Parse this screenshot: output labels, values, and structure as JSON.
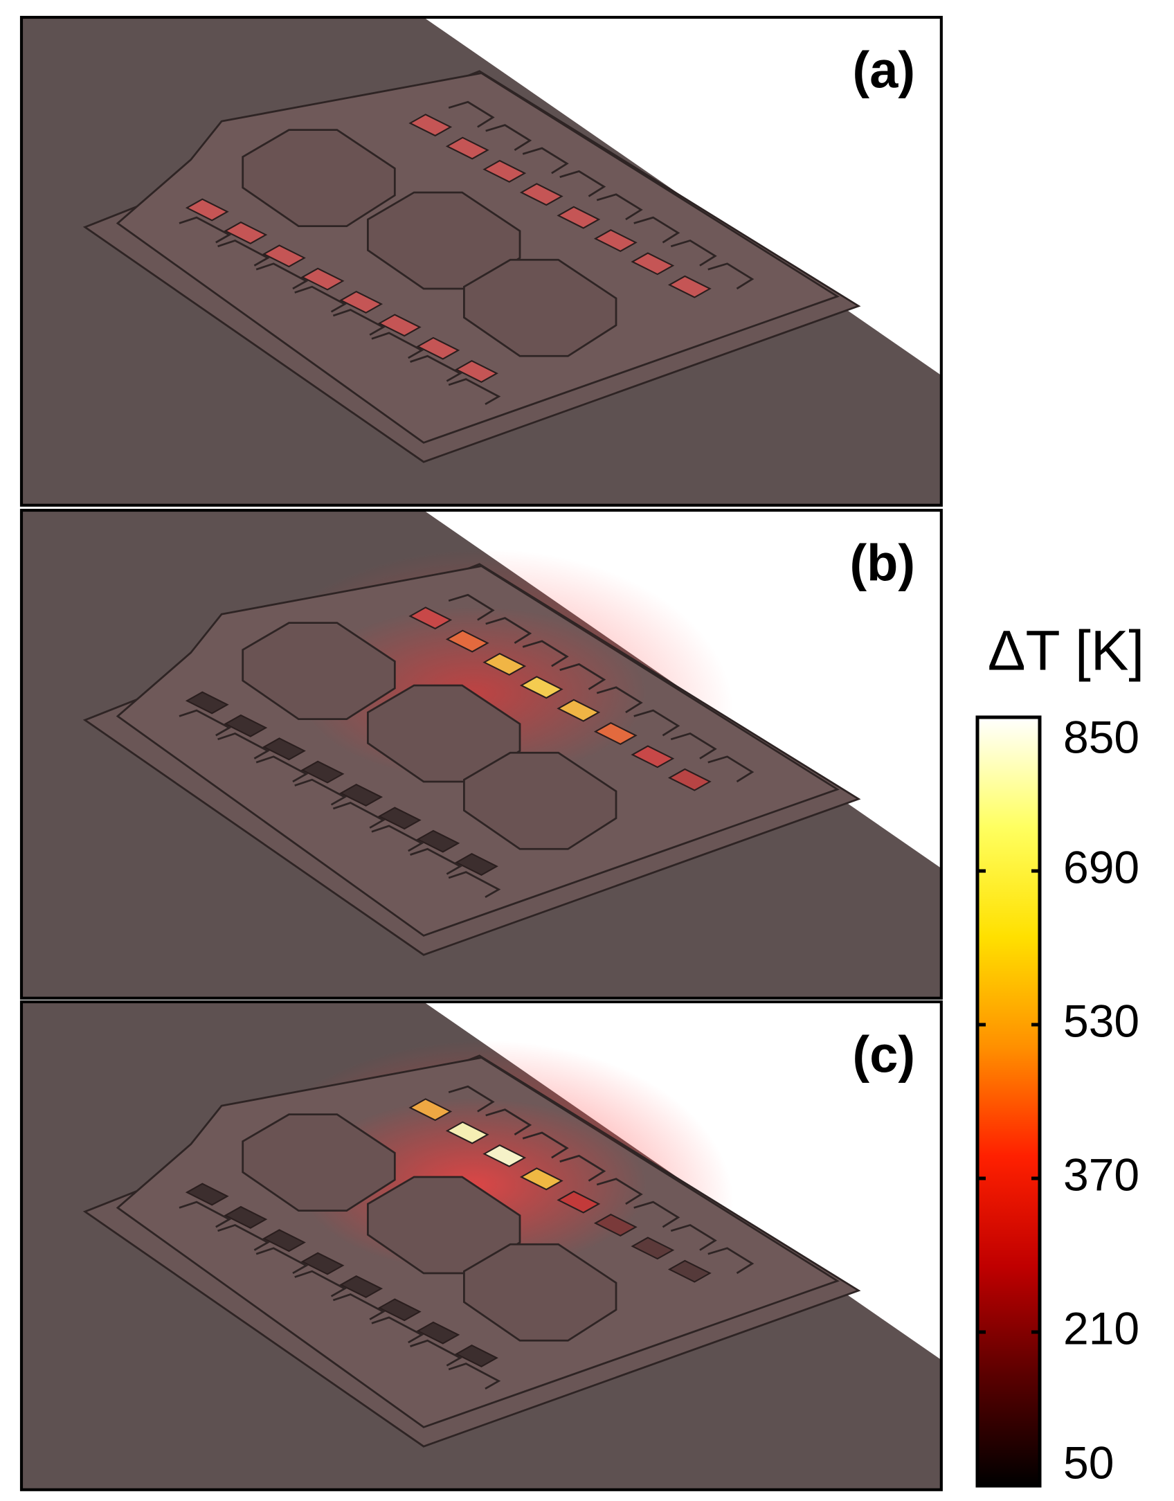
{
  "panels": [
    {
      "label": "(a)",
      "heated": "none"
    },
    {
      "label": "(b)",
      "heated": "spread"
    },
    {
      "label": "(c)",
      "heated": "focused"
    }
  ],
  "colorbar": {
    "title": "ΔT [K]",
    "lim": [
      50,
      850
    ],
    "ticks": [
      50,
      210,
      370,
      530,
      690,
      850
    ],
    "colormap": [
      "#000000",
      "#5a0000",
      "#c00000",
      "#ff2000",
      "#ff9000",
      "#ffe000",
      "#ffff60",
      "#ffffff"
    ]
  }
}
